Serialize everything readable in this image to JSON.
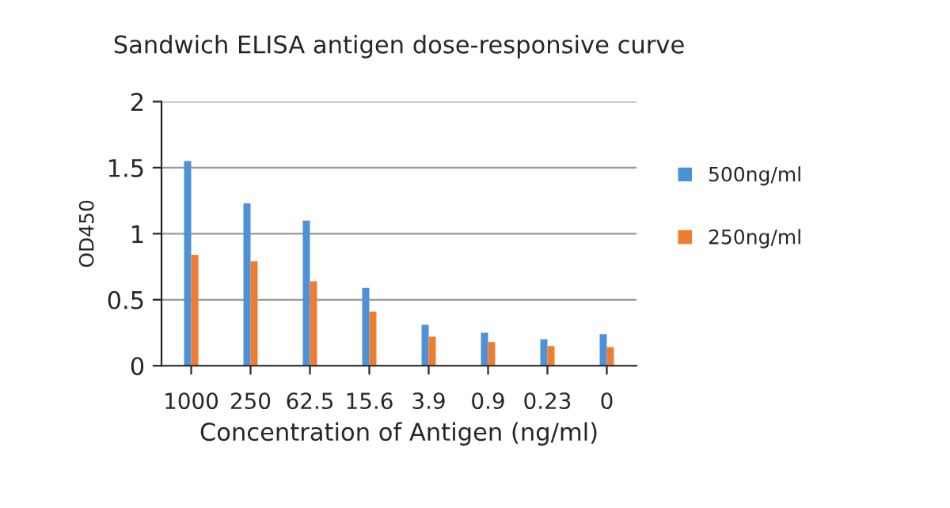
{
  "chart_data": {
    "type": "bar",
    "title": "Sandwich ELISA antigen dose-responsive curve",
    "xlabel": "Concentration of Antigen (ng/ml)",
    "ylabel": "OD450",
    "categories": [
      "1000",
      "250",
      "62.5",
      "15.6",
      "3.9",
      "0.9",
      "0.23",
      "0"
    ],
    "series": [
      {
        "name": "500ng/ml",
        "color": "#4f91d6",
        "values": [
          1.55,
          1.23,
          1.1,
          0.59,
          0.31,
          0.25,
          0.2,
          0.24
        ]
      },
      {
        "name": "250ng/ml",
        "color": "#ef7d31",
        "values": [
          0.84,
          0.79,
          0.64,
          0.41,
          0.22,
          0.18,
          0.15,
          0.14
        ]
      }
    ],
    "ylim": [
      0,
      2
    ],
    "yticks": [
      0,
      0.5,
      1,
      1.5,
      2
    ],
    "grid": "y",
    "legend": "right"
  }
}
